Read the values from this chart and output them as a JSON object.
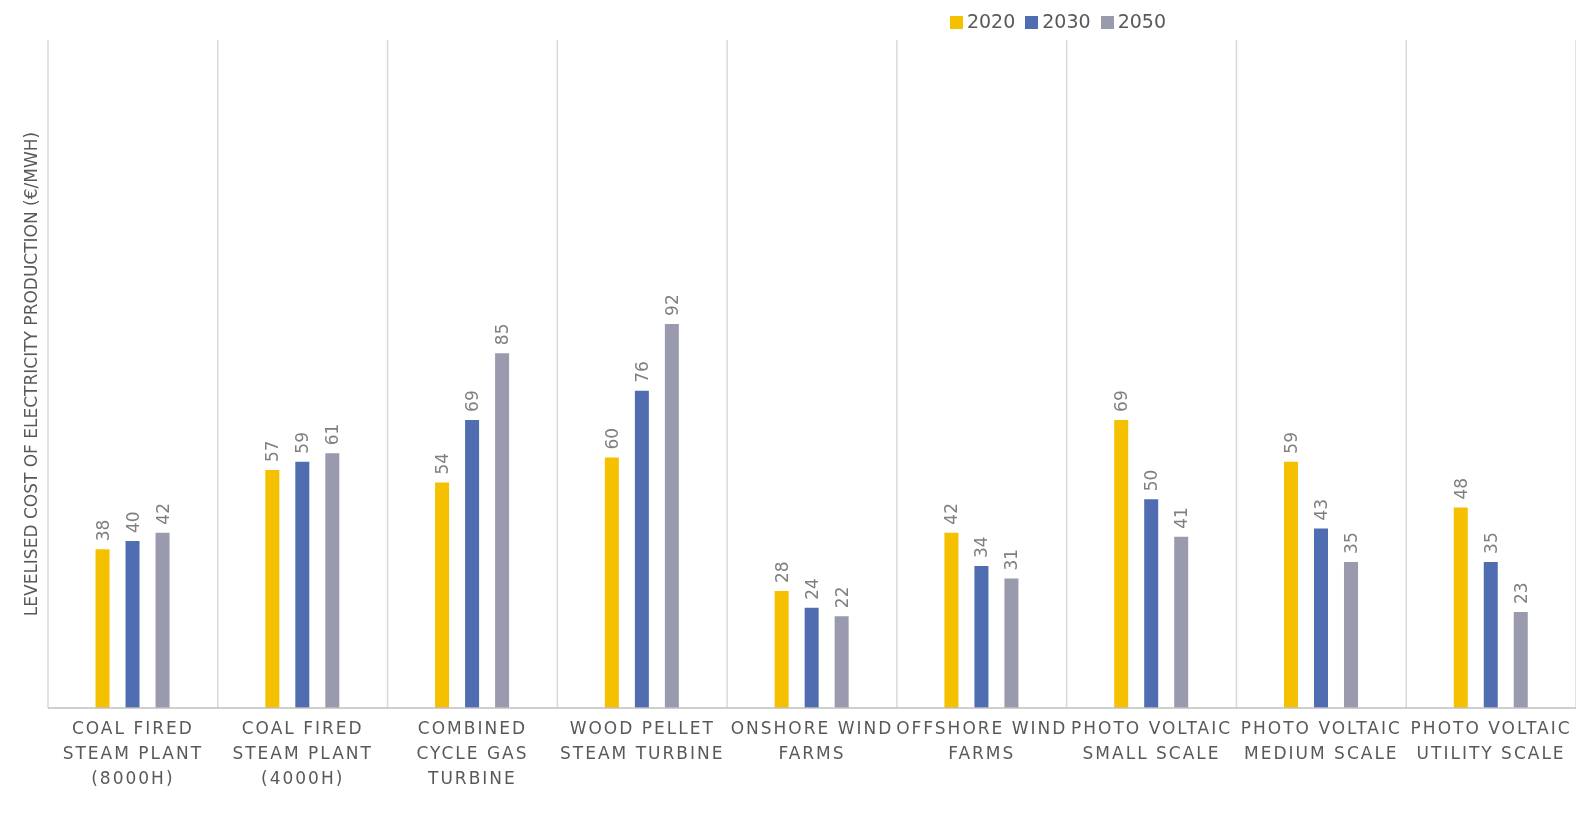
{
  "chart_data": {
    "type": "bar",
    "ylabel": "LEVELISED COST OF ELECTRICITY PRODUCTION (€/MWH)",
    "categories": [
      "COAL FIRED STEAM PLANT (8000H)",
      "COAL FIRED STEAM PLANT (4000H)",
      "COMBINED CYCLE GAS TURBINE",
      "WOOD PELLET STEAM TURBINE",
      "ONSHORE WIND FARMS",
      "OFFSHORE WIND FARMS",
      "PHOTO VOLTAIC SMALL SCALE",
      "PHOTO VOLTAIC MEDIUM SCALE",
      "PHOTO VOLTAIC UTILITY SCALE"
    ],
    "series": [
      {
        "name": "2020",
        "color": "#f5c000",
        "values": [
          38,
          57,
          54,
          60,
          28,
          42,
          69,
          59,
          48
        ]
      },
      {
        "name": "2030",
        "color": "#4f6db0",
        "values": [
          40,
          59,
          69,
          76,
          24,
          34,
          50,
          43,
          35
        ]
      },
      {
        "name": "2050",
        "color": "#9a9aae",
        "values": [
          42,
          61,
          85,
          92,
          22,
          31,
          41,
          35,
          23
        ]
      }
    ],
    "ylim": [
      0,
      160
    ],
    "data_labels": true,
    "grid": "x",
    "legend": "top right",
    "tick_labels": "x"
  }
}
